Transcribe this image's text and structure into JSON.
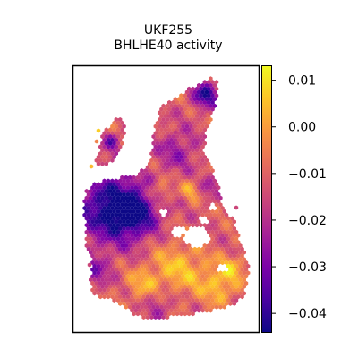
{
  "chart_data": {
    "type": "heatmap",
    "title": "UKF255",
    "subtitle": "BHLHE40 activity",
    "xlabel": "",
    "ylabel": "",
    "colormap": "plasma",
    "colorbar": {
      "range": [
        -0.044,
        0.013
      ],
      "ticks": [
        0.01,
        0.0,
        -0.01,
        -0.02,
        -0.03,
        -0.04
      ],
      "tick_labels": [
        "0.01",
        "0.00",
        "−0.01",
        "−0.02",
        "−0.03",
        "−0.04"
      ]
    },
    "axes_ticks_visible": false,
    "grid": false
  }
}
